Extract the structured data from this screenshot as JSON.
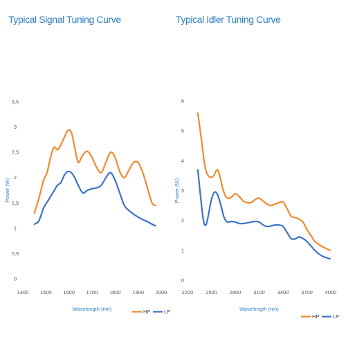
{
  "chart_data": [
    {
      "type": "line",
      "title": "Typical Signal Tuning Curve",
      "xlabel": "Wavelength (nm)",
      "ylabel": "Power (W)",
      "xlim": [
        1400,
        2000
      ],
      "ylim": [
        0,
        3.5
      ],
      "xticks": [
        "1400",
        "1500",
        "1600",
        "1700",
        "1800",
        "1900",
        "2000"
      ],
      "yticks": [
        "0",
        "0,5",
        "1",
        "1,5",
        "2",
        "2,5",
        "3",
        "3,5"
      ],
      "legend": "bottom-right",
      "grid": false,
      "series": [
        {
          "name": "HP",
          "color": "#f08a2e",
          "x": [
            1450,
            1470,
            1490,
            1505,
            1520,
            1535,
            1550,
            1565,
            1580,
            1595,
            1610,
            1625,
            1640,
            1660,
            1680,
            1700,
            1720,
            1740,
            1760,
            1780,
            1800,
            1820,
            1840,
            1860,
            1880,
            1900,
            1920,
            1940,
            1960,
            1975
          ],
          "y": [
            1.3,
            1.6,
            1.95,
            2.1,
            2.4,
            2.6,
            2.55,
            2.65,
            2.8,
            2.93,
            2.9,
            2.6,
            2.3,
            2.45,
            2.52,
            2.4,
            2.2,
            2.1,
            2.3,
            2.5,
            2.4,
            2.12,
            2.0,
            2.15,
            2.3,
            2.3,
            2.1,
            1.8,
            1.5,
            1.45
          ]
        },
        {
          "name": "LP",
          "color": "#3a73c8",
          "x": [
            1450,
            1470,
            1490,
            1510,
            1530,
            1550,
            1565,
            1580,
            1595,
            1610,
            1625,
            1640,
            1660,
            1680,
            1700,
            1720,
            1740,
            1760,
            1780,
            1800,
            1820,
            1840,
            1860,
            1880,
            1900,
            1920,
            1940,
            1960,
            1975
          ],
          "y": [
            1.08,
            1.15,
            1.4,
            1.55,
            1.7,
            1.85,
            1.9,
            2.05,
            2.12,
            2.1,
            2.0,
            1.85,
            1.7,
            1.75,
            1.78,
            1.8,
            1.85,
            2.0,
            2.1,
            1.95,
            1.7,
            1.45,
            1.35,
            1.28,
            1.22,
            1.17,
            1.13,
            1.08,
            1.05
          ]
        }
      ]
    },
    {
      "type": "line",
      "title": "Typical Idler Tuning Curve",
      "xlabel": "Wavelength (nm)",
      "ylabel": "Power (W)",
      "xlim": [
        2200,
        4000
      ],
      "ylim": [
        0,
        6
      ],
      "xticks": [
        "2200",
        "2500",
        "2800",
        "3100",
        "3400",
        "3700",
        "4000"
      ],
      "yticks": [
        "0",
        "1",
        "2",
        "3",
        "4",
        "5",
        "6"
      ],
      "legend": "bottom-right",
      "grid": false,
      "series": [
        {
          "name": "HP",
          "color": "#f08a2e",
          "x": [
            2330,
            2380,
            2420,
            2460,
            2500,
            2530,
            2570,
            2600,
            2640,
            2680,
            2720,
            2760,
            2800,
            2850,
            2900,
            2950,
            3000,
            3050,
            3100,
            3150,
            3200,
            3250,
            3300,
            3350,
            3400,
            3450,
            3500,
            3550,
            3600,
            3650,
            3700,
            3750,
            3800,
            3850,
            3900,
            3950,
            3990
          ],
          "y": [
            5.6,
            4.6,
            3.8,
            3.5,
            3.45,
            3.5,
            3.7,
            3.55,
            3.1,
            2.8,
            2.75,
            2.8,
            2.9,
            2.8,
            2.65,
            2.6,
            2.6,
            2.7,
            2.75,
            2.65,
            2.55,
            2.5,
            2.55,
            2.6,
            2.62,
            2.4,
            2.15,
            2.1,
            2.05,
            1.95,
            1.7,
            1.5,
            1.3,
            1.2,
            1.12,
            1.05,
            1.0
          ]
        },
        {
          "name": "LP",
          "color": "#3a73c8",
          "x": [
            2330,
            2360,
            2400,
            2430,
            2460,
            2500,
            2540,
            2580,
            2620,
            2660,
            2700,
            2750,
            2800,
            2850,
            2900,
            2950,
            3000,
            3050,
            3100,
            3150,
            3200,
            3250,
            3300,
            3350,
            3400,
            3450,
            3500,
            3550,
            3600,
            3650,
            3700,
            3750,
            3800,
            3850,
            3900,
            3950,
            3990
          ],
          "y": [
            3.7,
            2.9,
            2.0,
            1.85,
            2.15,
            2.7,
            2.95,
            2.85,
            2.5,
            2.1,
            1.95,
            1.97,
            1.95,
            1.9,
            1.9,
            1.92,
            1.95,
            1.97,
            1.95,
            1.85,
            1.8,
            1.82,
            1.85,
            1.85,
            1.8,
            1.6,
            1.4,
            1.38,
            1.45,
            1.4,
            1.3,
            1.15,
            1.0,
            0.88,
            0.8,
            0.75,
            0.72
          ]
        }
      ]
    }
  ]
}
